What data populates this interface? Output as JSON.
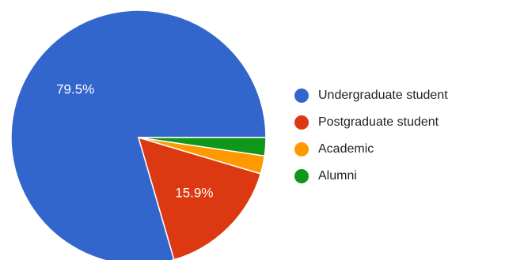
{
  "chart_data": {
    "type": "pie",
    "title": "",
    "legend_position": "right",
    "slices": [
      {
        "label": "Undergraduate student",
        "value": 79.5,
        "value_label": "79.5%",
        "color": "#3366cc"
      },
      {
        "label": "Postgraduate student",
        "value": 15.9,
        "value_label": "15.9%",
        "color": "#dc3912"
      },
      {
        "label": "Academic",
        "value": 2.3,
        "value_label": "",
        "color": "#ff9900"
      },
      {
        "label": "Alumni",
        "value": 2.3,
        "value_label": "",
        "color": "#109618"
      }
    ]
  }
}
